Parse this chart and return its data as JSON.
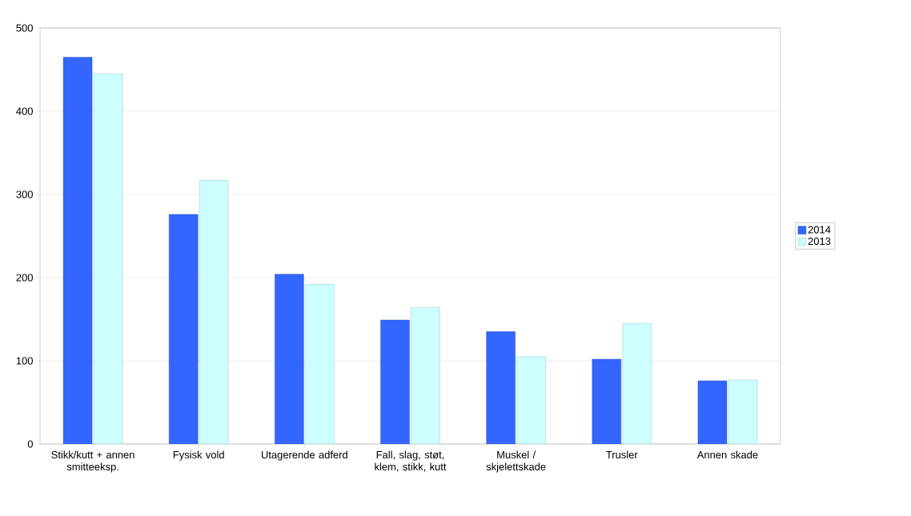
{
  "chart_data": {
    "type": "bar",
    "categories": [
      "Stikk/kutt + annen smitteeksp.",
      "Fysisk vold",
      "Utagerende adferd",
      "Fall, slag, støt, klem, stikk, kutt",
      "Muskel / skjelettskade",
      "Trusler",
      "Annen skade"
    ],
    "series": [
      {
        "name": "2014",
        "color": "#3366ff",
        "values": [
          465,
          276,
          204,
          149,
          135,
          102,
          76
        ]
      },
      {
        "name": "2013",
        "color": "#ccffff",
        "values": [
          445,
          317,
          192,
          164,
          105,
          145,
          77
        ]
      }
    ],
    "ylim": [
      0,
      500
    ],
    "yticks": [
      0,
      100,
      200,
      300,
      400,
      500
    ],
    "grid": "y",
    "legend": "right"
  }
}
